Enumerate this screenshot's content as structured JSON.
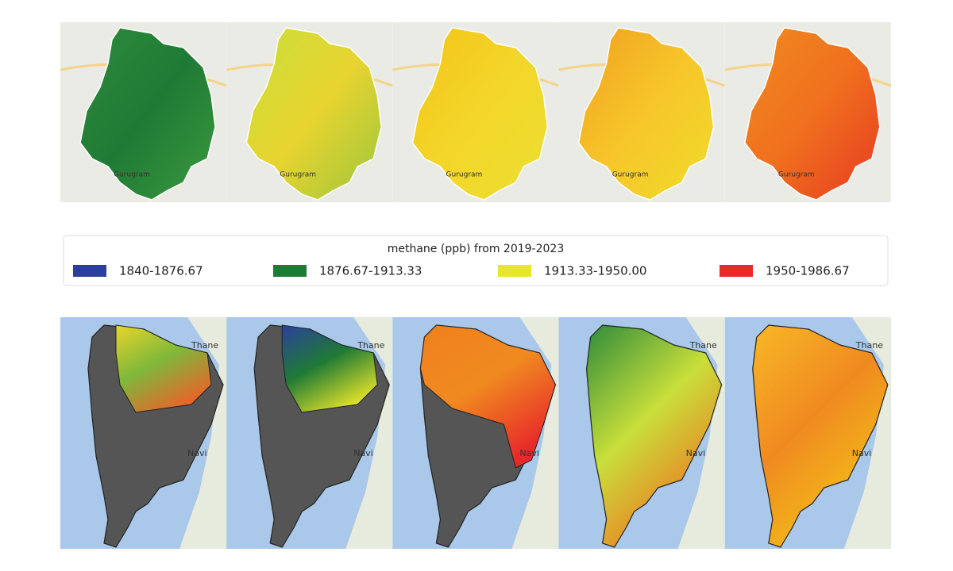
{
  "legend": {
    "title": "methane (ppb) from 2019-2023",
    "items": [
      {
        "label": "1840-1876.67",
        "color": "#2c3f9c"
      },
      {
        "label": "1876.67-1913.33",
        "color": "#1f7a35"
      },
      {
        "label": "1913.33-1950.00",
        "color": "#e8e62a"
      },
      {
        "label": "1950-1986.67",
        "color": "#e8282a"
      }
    ]
  },
  "map_labels": {
    "delhi": "Gurugram",
    "mumbai_north": "Thane",
    "mumbai_east": "Navi"
  }
}
